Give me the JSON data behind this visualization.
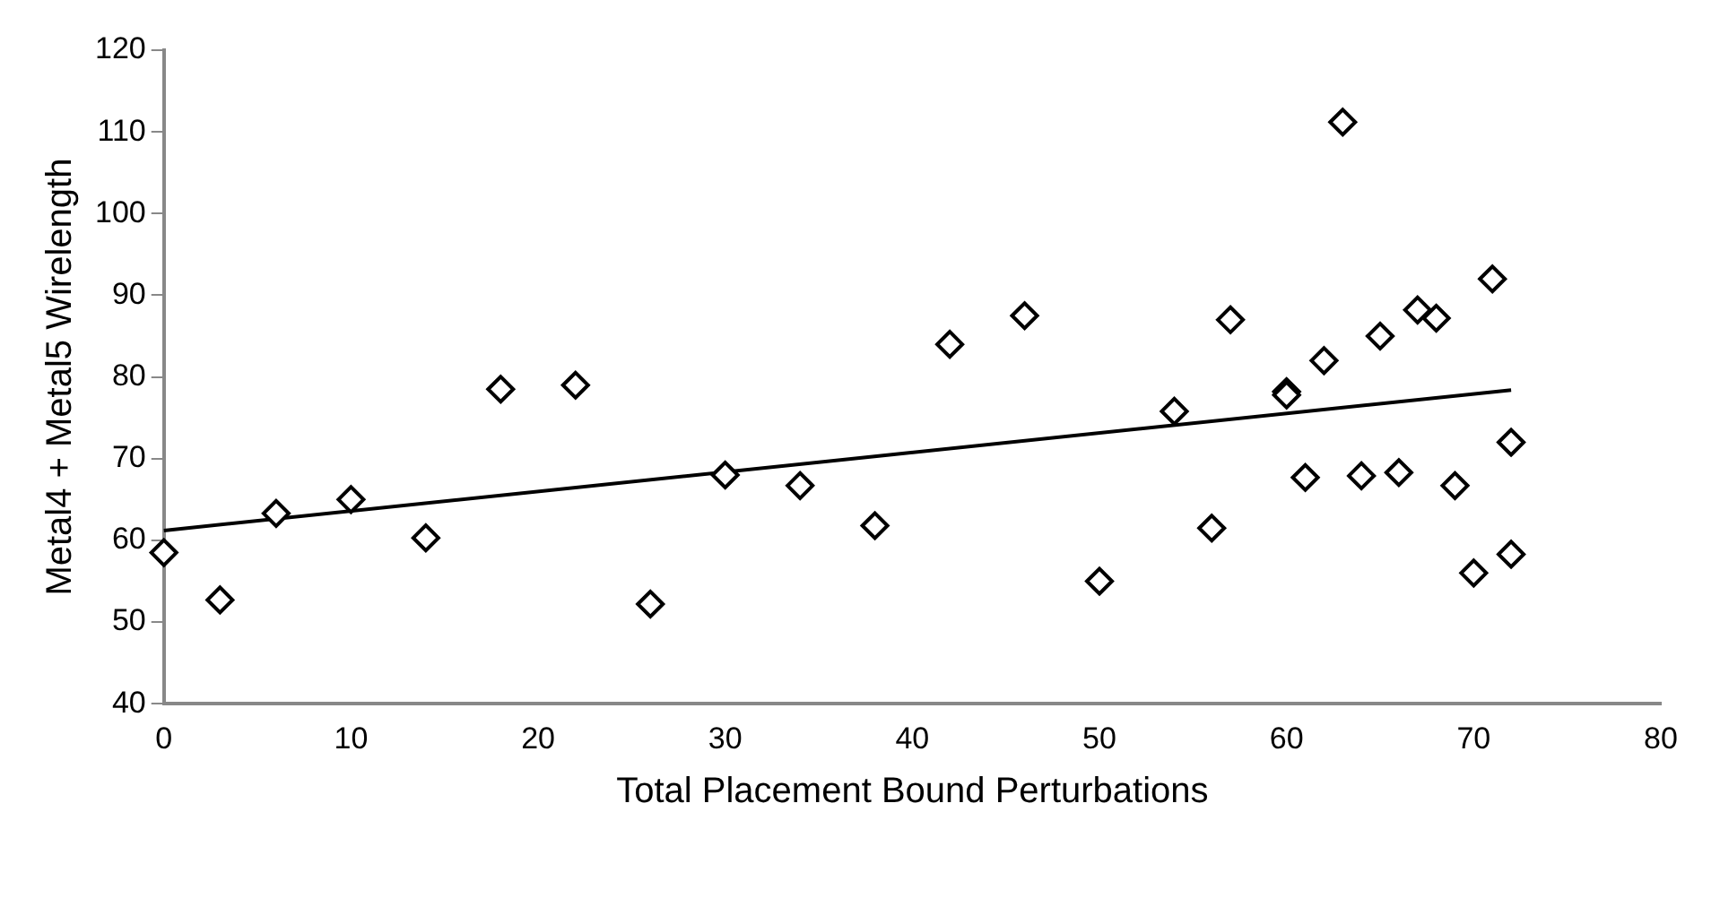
{
  "chart_data": {
    "type": "scatter",
    "xlabel": "Total Placement Bound Perturbations",
    "ylabel": "Metal4 + Metal5 Wirelength",
    "xlim": [
      0,
      80
    ],
    "xticks": [
      0,
      10,
      20,
      30,
      40,
      50,
      60,
      70,
      80
    ],
    "ylim": [
      40,
      120
    ],
    "yticks": [
      40,
      50,
      60,
      70,
      80,
      90,
      100,
      110,
      120
    ],
    "grid": false,
    "legend": false,
    "marker": "diamond",
    "series": [
      {
        "color": "#000000",
        "x": [
          0,
          3,
          6,
          10,
          14,
          18,
          22,
          26,
          30,
          34,
          38,
          42,
          46,
          50,
          54,
          56,
          57,
          60,
          60,
          61,
          62,
          63,
          64,
          65,
          66,
          67,
          68,
          69,
          70,
          71,
          72,
          72
        ],
        "values": [
          58.5,
          52.7,
          63.3,
          65,
          60.3,
          78.5,
          79,
          52.2,
          68,
          66.7,
          61.8,
          84,
          87.5,
          55,
          75.8,
          61.5,
          87,
          78.2,
          77.8,
          67.7,
          82,
          111.2,
          67.9,
          85,
          68.3,
          88.2,
          87.2,
          66.7,
          56,
          92,
          72,
          58.3
        ]
      },
      {
        "type": "line",
        "color": "#000000",
        "marker": "none",
        "line_style": "solid",
        "x": [
          0,
          72
        ],
        "values": [
          61.2,
          78.4
        ]
      }
    ]
  }
}
